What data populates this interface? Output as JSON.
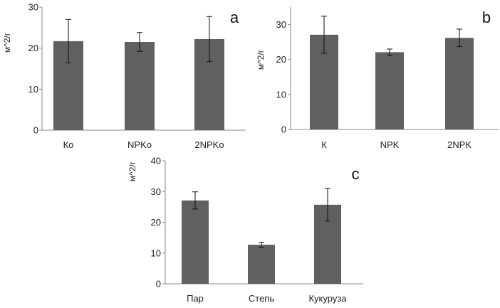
{
  "chart_data": [
    {
      "type": "bar",
      "panel_label": "a",
      "ylabel": "м^2/г",
      "ylim": [
        0,
        30
      ],
      "yticks": [
        0,
        10,
        20,
        30
      ],
      "categories": [
        "Ко",
        "NPKо",
        "2NPKо"
      ],
      "values": [
        21.7,
        21.5,
        22.2
      ],
      "errors": [
        5.3,
        2.3,
        5.5
      ],
      "bar_color": "#606060"
    },
    {
      "type": "bar",
      "panel_label": "b",
      "ylabel": "м^2/г",
      "ylim": [
        0,
        35
      ],
      "yticks": [
        0,
        10,
        20,
        30
      ],
      "categories": [
        "К",
        "NPK",
        "2NPK"
      ],
      "values": [
        27.1,
        22.1,
        26.2
      ],
      "errors": [
        5.3,
        0.9,
        2.5
      ],
      "bar_color": "#606060"
    },
    {
      "type": "bar",
      "panel_label": "c",
      "ylabel": "м^2/г",
      "ylim": [
        0,
        40
      ],
      "yticks": [
        0,
        10,
        20,
        30,
        40
      ],
      "categories": [
        "Пар",
        "Степь",
        "Кукуруза"
      ],
      "values": [
        27.1,
        12.7,
        25.7
      ],
      "errors": [
        2.8,
        0.8,
        5.3
      ],
      "bar_color": "#606060"
    }
  ]
}
